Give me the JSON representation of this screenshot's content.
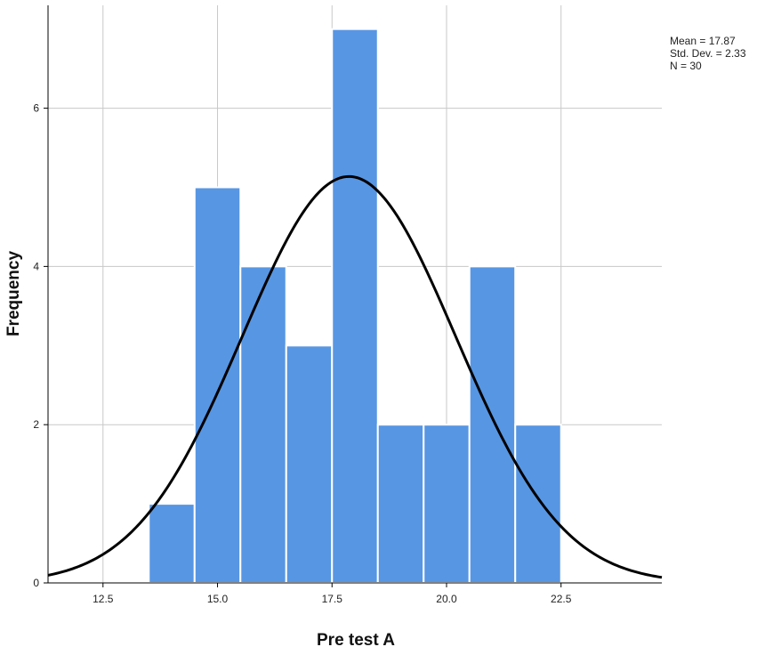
{
  "chart_data": {
    "type": "bar",
    "subtype": "histogram",
    "xlabel": "Pre test A",
    "ylabel": "Frequency",
    "bins": [
      {
        "start": 13.5,
        "end": 14.5,
        "count": 1
      },
      {
        "start": 14.5,
        "end": 15.5,
        "count": 5
      },
      {
        "start": 15.5,
        "end": 16.5,
        "count": 4
      },
      {
        "start": 16.5,
        "end": 17.5,
        "count": 3
      },
      {
        "start": 17.5,
        "end": 18.5,
        "count": 7
      },
      {
        "start": 18.5,
        "end": 19.5,
        "count": 2
      },
      {
        "start": 19.5,
        "end": 20.5,
        "count": 2
      },
      {
        "start": 20.5,
        "end": 21.5,
        "count": 4
      },
      {
        "start": 21.5,
        "end": 22.5,
        "count": 2
      }
    ],
    "xlim": [
      11.3,
      24.7
    ],
    "ylim": [
      0,
      7.3
    ],
    "xticks": [
      12.5,
      15.0,
      17.5,
      20.0,
      22.5
    ],
    "xtick_labels": [
      "12.5",
      "15.0",
      "17.5",
      "20.0",
      "22.5"
    ],
    "yticks": [
      0,
      2,
      4,
      6
    ],
    "ytick_labels": [
      "0",
      "2",
      "4",
      "6"
    ],
    "normal_curve": {
      "mean": 17.87,
      "std": 2.33,
      "n": 30,
      "bin_width": 1
    },
    "stats_text": [
      "Mean = 17.87",
      "Std. Dev. = 2.33",
      "N = 30"
    ],
    "grid": true,
    "colors": {
      "bar_fill": "#5796e3",
      "bar_edge": "#ffffff",
      "curve": "#000000",
      "grid": "#c8c8c8",
      "axis": "#000000"
    }
  }
}
